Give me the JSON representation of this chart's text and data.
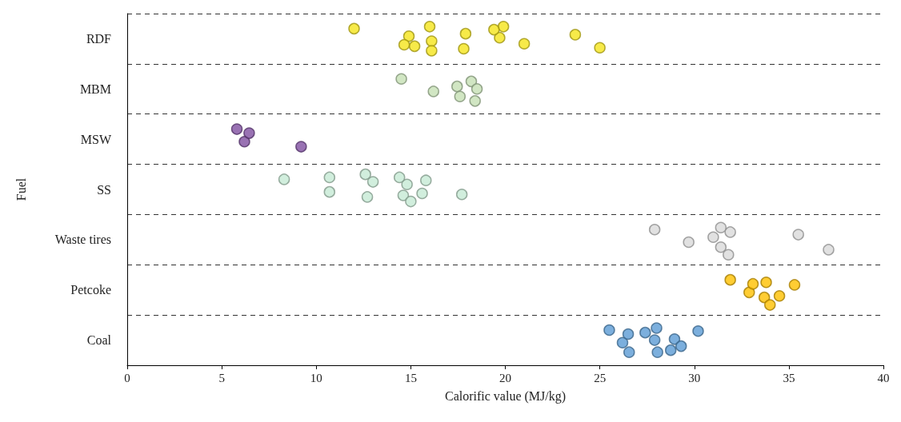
{
  "chart_data": {
    "type": "scatter",
    "orientation": "horizontal",
    "xlabel": "Calorific value (MJ/kg)",
    "ylabel": "Fuel",
    "categories": [
      "RDF",
      "MBM",
      "MSW",
      "SS",
      "Waste tires",
      "Petcoke",
      "Coal"
    ],
    "xlim": [
      0,
      40
    ],
    "xticks": [
      0,
      5,
      10,
      15,
      20,
      25,
      30,
      35,
      40
    ],
    "grid": "y",
    "marker": "circle",
    "series": [
      {
        "color": "#f5e51b",
        "x": [
          "RDF",
          "RDF",
          "RDF",
          "RDF",
          "RDF",
          "RDF",
          "RDF",
          "RDF",
          "RDF",
          "RDF",
          "RDF",
          "RDF",
          "RDF",
          "RDF",
          "RDF"
        ],
        "values": [
          12.0,
          16.1,
          14.9,
          15.2,
          14.65,
          16.0,
          16.1,
          17.9,
          17.8,
          19.7,
          19.9,
          19.4,
          21.0,
          23.7,
          25.0
        ]
      },
      {
        "color": "#c5e0b4",
        "x": [
          "MBM",
          "MBM",
          "MBM",
          "MBM",
          "MBM",
          "MBM",
          "MBM"
        ],
        "values": [
          14.5,
          16.2,
          17.45,
          17.6,
          18.2,
          18.5,
          18.4
        ]
      },
      {
        "color": "#7f4fa0",
        "x": [
          "MSW",
          "MSW",
          "MSW",
          "MSW"
        ],
        "values": [
          5.8,
          6.2,
          6.45,
          9.2
        ]
      },
      {
        "color": "#c6ead5",
        "x": [
          "SS",
          "SS",
          "SS",
          "SS",
          "SS",
          "SS",
          "SS",
          "SS",
          "SS",
          "SS",
          "SS",
          "SS",
          "SS"
        ],
        "values": [
          8.3,
          10.7,
          10.7,
          12.7,
          13.0,
          12.6,
          14.6,
          14.8,
          15.0,
          14.4,
          15.6,
          15.8,
          17.7
        ]
      },
      {
        "color": "#d9d9d9",
        "x": [
          "Waste tires",
          "Waste tires",
          "Waste tires",
          "Waste tires",
          "Waste tires",
          "Waste tires",
          "Waste tires",
          "Waste tires",
          "Waste tires"
        ],
        "values": [
          27.9,
          29.7,
          31.0,
          31.4,
          31.9,
          31.4,
          31.8,
          35.5,
          37.1
        ]
      },
      {
        "color": "#ffc000",
        "x": [
          "Petcoke",
          "Petcoke",
          "Petcoke",
          "Petcoke",
          "Petcoke",
          "Petcoke",
          "Petcoke",
          "Petcoke"
        ],
        "values": [
          31.9,
          32.9,
          33.1,
          33.7,
          33.8,
          34.0,
          34.5,
          35.3
        ]
      },
      {
        "color": "#5b9bd5",
        "x": [
          "Coal",
          "Coal",
          "Coal",
          "Coal",
          "Coal",
          "Coal",
          "Coal",
          "Coal",
          "Coal",
          "Coal",
          "Coal",
          "Coal"
        ],
        "values": [
          25.5,
          26.2,
          26.5,
          26.55,
          27.4,
          27.9,
          28.0,
          28.05,
          28.75,
          28.95,
          29.3,
          30.2
        ]
      }
    ]
  }
}
